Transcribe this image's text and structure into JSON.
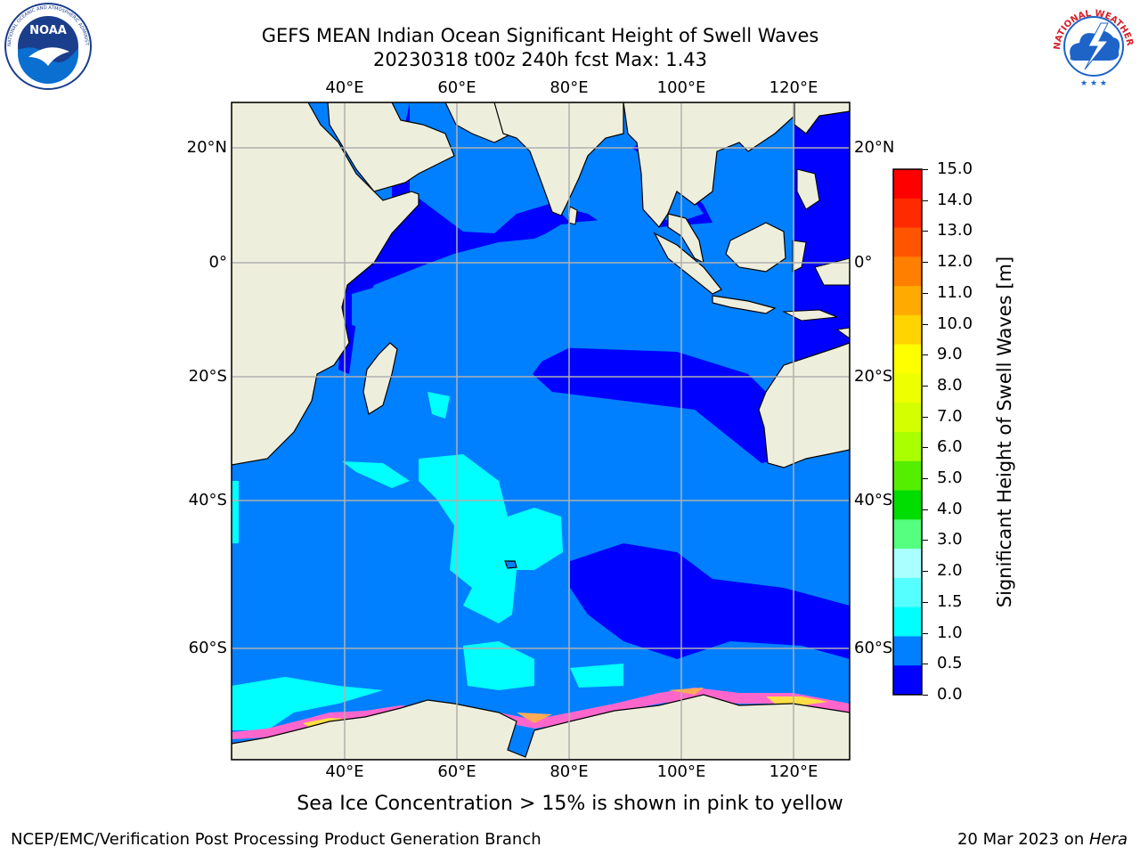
{
  "header": {
    "title_line1": "GEFS MEAN Indian Ocean Significant Height of Swell Waves",
    "title_line2": "20230318 t00z 240h fcst   Max: 1.43"
  },
  "logos": {
    "left": {
      "text": "NOAA",
      "ring_text": "NATIONAL OCEANIC AND ATMOSPHERIC ADMINISTRATION · U.S. DEPARTMENT OF COMMERCE",
      "colors": {
        "ring": "#ffffff",
        "sky": "#1b3e8c",
        "sea": "#0a6fd1"
      }
    },
    "right": {
      "ring_text": "NATIONAL WEATHER SERVICE",
      "colors": {
        "ring": "#d6202a",
        "cloud": "#1e64c8"
      }
    }
  },
  "map": {
    "lon_ticks": [
      "40°E",
      "60°E",
      "80°E",
      "100°E",
      "120°E"
    ],
    "lat_ticks": [
      "20°N",
      "0°",
      "20°S",
      "40°S",
      "60°S"
    ],
    "colors": {
      "land": "#eeeedc",
      "coast": "#000000",
      "grid": "#b0b0b0"
    }
  },
  "colorbar": {
    "label": "Significant Height of Swell Waves [m]",
    "ticks": [
      "15.0",
      "14.0",
      "13.0",
      "12.0",
      "11.0",
      "10.0",
      "9.0",
      "8.0",
      "7.0",
      "6.0",
      "5.0",
      "4.0",
      "3.0",
      "2.0",
      "1.5",
      "1.0",
      "0.5",
      "0.0"
    ],
    "colors": [
      "#ff0000",
      "#ff2a00",
      "#ff5500",
      "#ff8000",
      "#ffaa00",
      "#ffd400",
      "#ffff00",
      "#eeff00",
      "#d4ff00",
      "#aaff00",
      "#55ee00",
      "#00dd00",
      "#55ff80",
      "#aaffff",
      "#55ffff",
      "#00ffff",
      "#0080ff",
      "#0000ff"
    ]
  },
  "caption": "Sea Ice Concentration > 15% is shown in pink to yellow",
  "footer": {
    "left": "NCEP/EMC/Verification Post Processing Product Generation Branch",
    "right_date": "20 Mar 2023 on ",
    "right_host": "Hera"
  }
}
